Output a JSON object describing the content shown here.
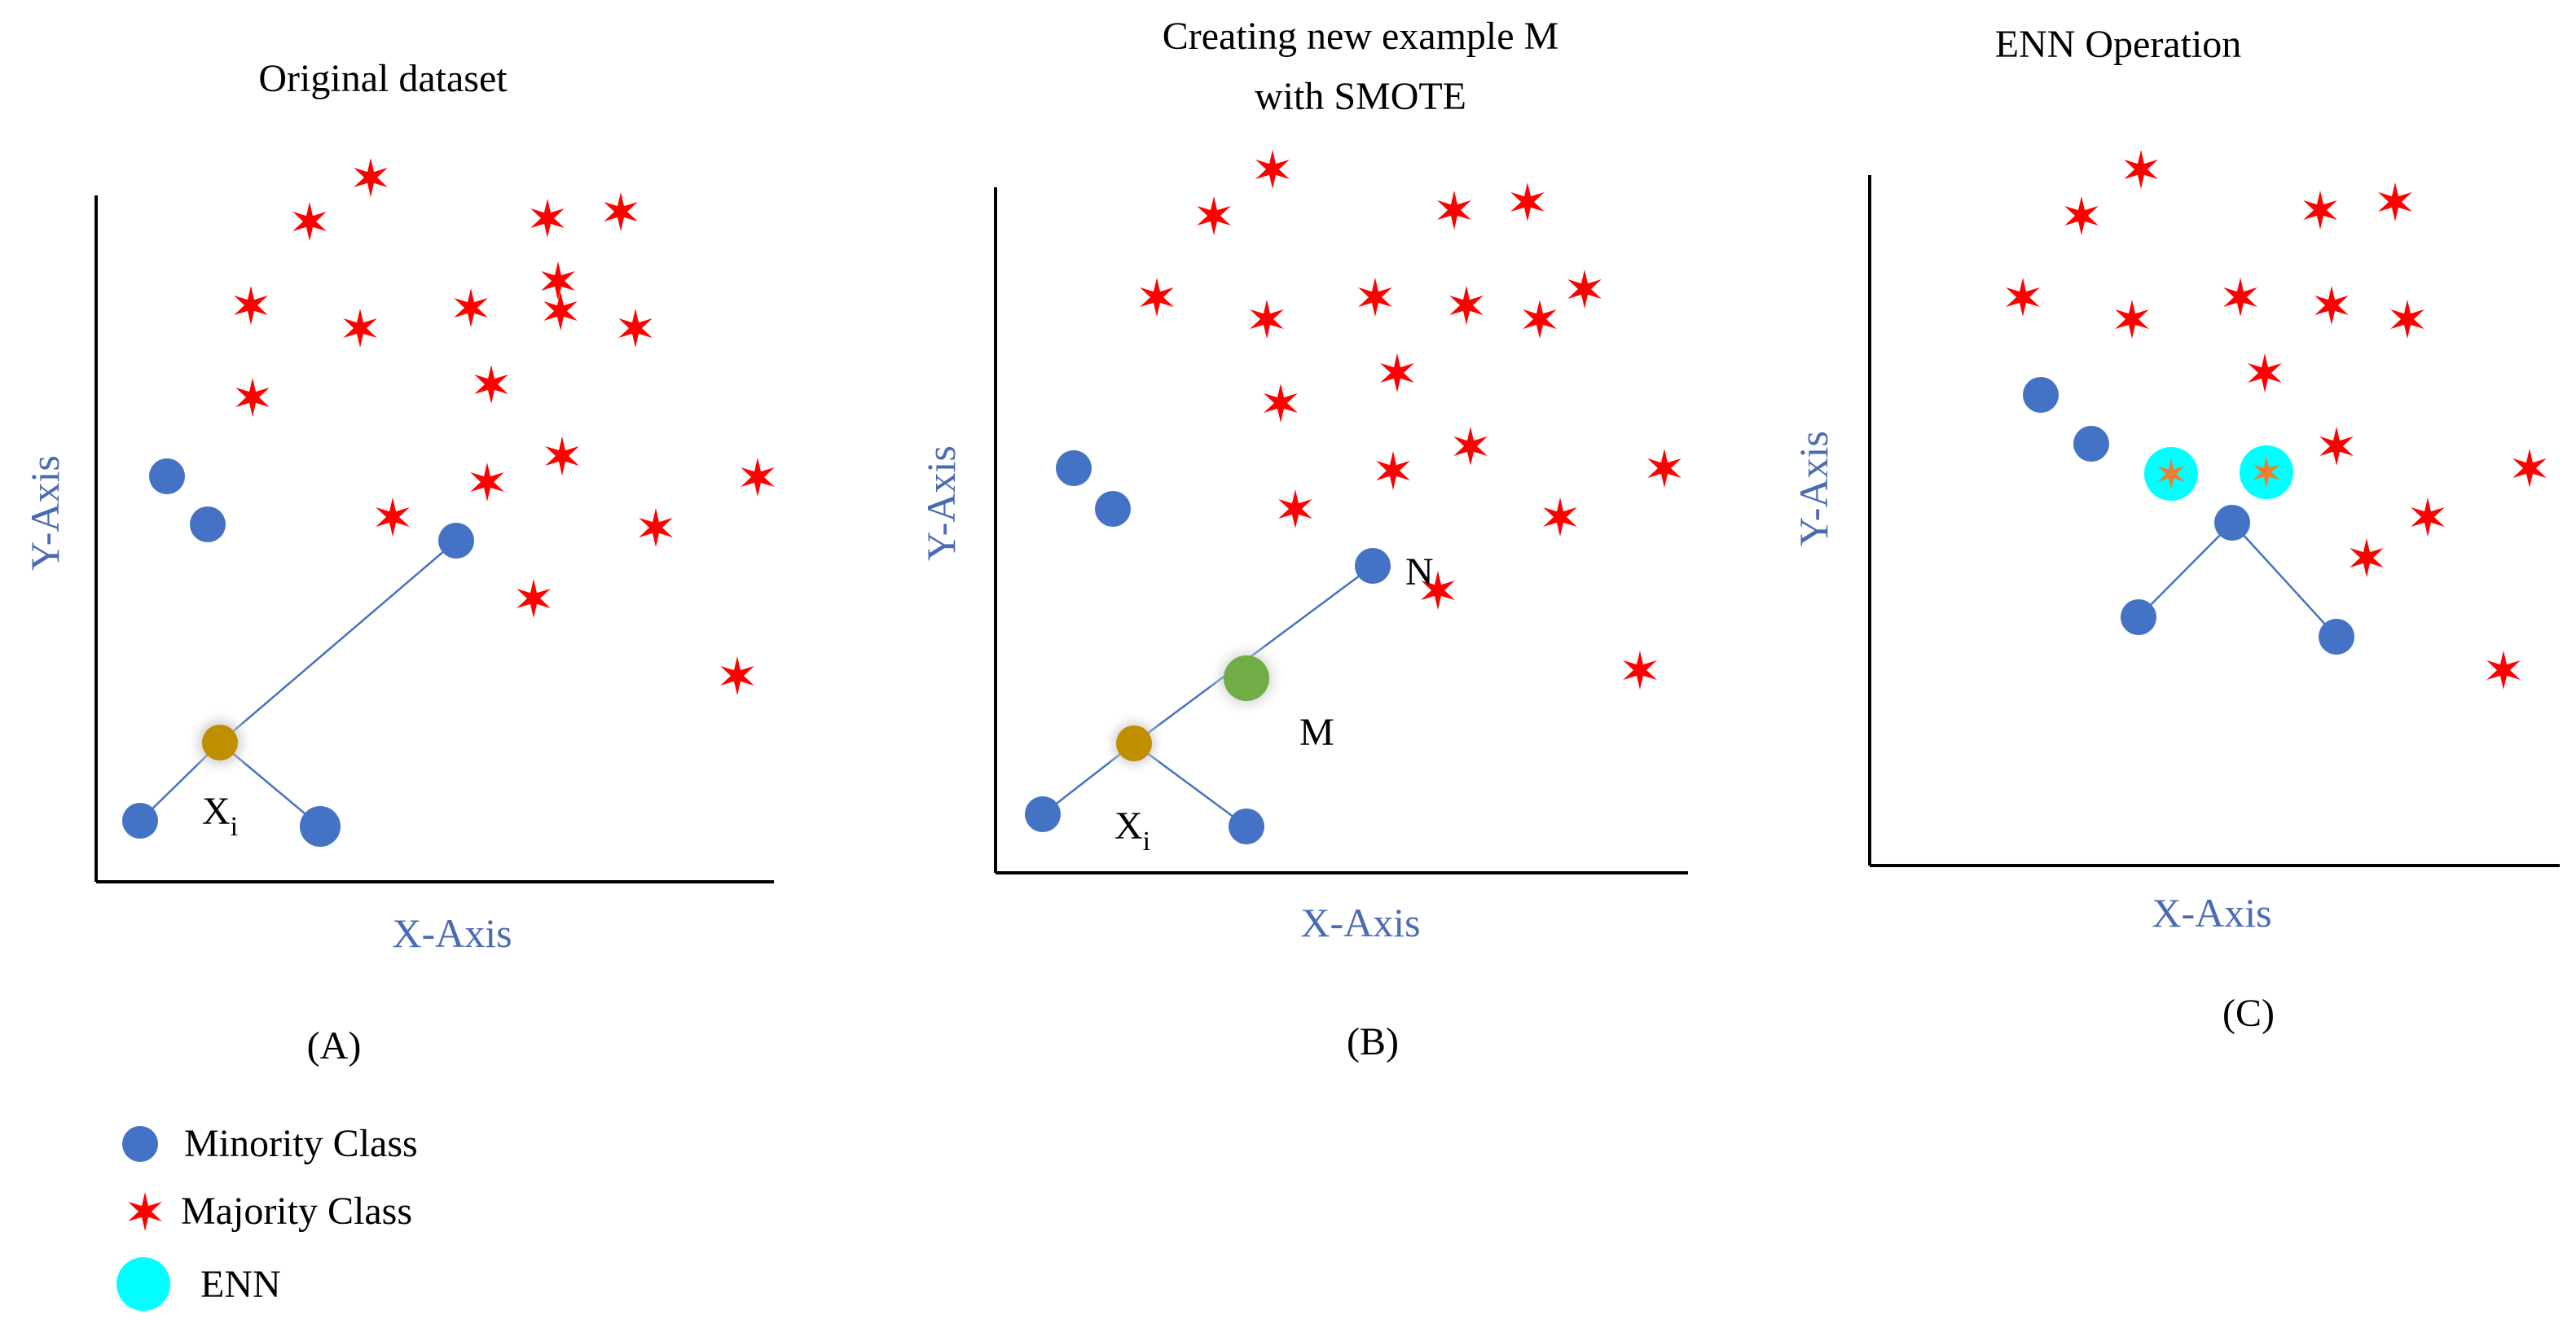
{
  "panels": [
    {
      "id": "A",
      "title_lines": [
        "Original dataset"
      ],
      "x_axis_label": "X-Axis",
      "y_axis_label": "Y-Axis",
      "caption": "(A)",
      "labels": {
        "xi": "X",
        "xi_sub": "i"
      }
    },
    {
      "id": "B",
      "title_lines": [
        "Creating new example M",
        "with SMOTE"
      ],
      "x_axis_label": "X-Axis",
      "y_axis_label": "Y-Axis",
      "caption": "(B)",
      "labels": {
        "xi": "X",
        "xi_sub": "i",
        "n": "N",
        "m": "M"
      }
    },
    {
      "id": "C",
      "title_lines": [
        "ENN Operation"
      ],
      "x_axis_label": "X-Axis",
      "y_axis_label": "Y-Axis",
      "caption": "(C)",
      "labels": {}
    }
  ],
  "legend": {
    "minority": "Minority Class",
    "majority": "Majority Class",
    "enn": "ENN"
  },
  "colors": {
    "minority": "#4472c4",
    "majority": "#ff0000",
    "selected": "#bf8f00",
    "synthetic": "#70ad47",
    "enn": "#00ffff",
    "enn_star": "#ed7d31",
    "axis_text": "#4a6bb3",
    "line": "#4472c4"
  }
}
